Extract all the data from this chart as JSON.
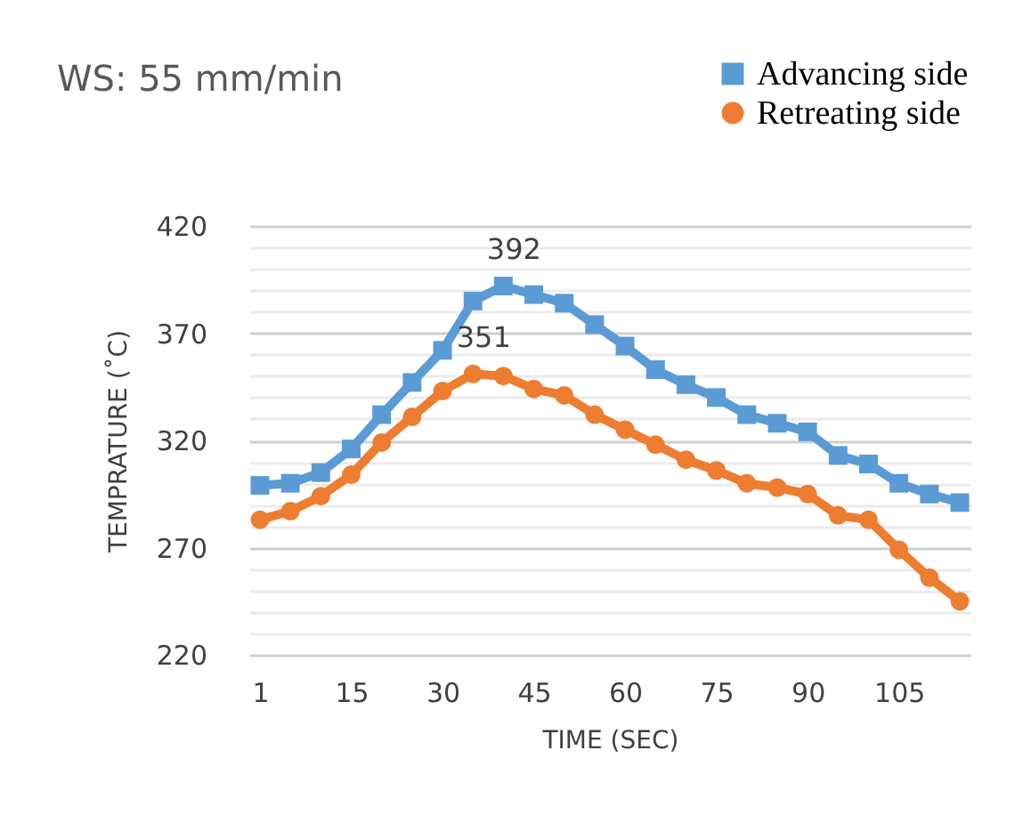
{
  "chart_data": {
    "type": "line",
    "title": "WS: 55 mm/min",
    "xlabel": "TIME (SEC)",
    "ylabel": "TEMPRATURE (˚C)",
    "categories": [
      "1",
      null,
      null,
      "15",
      null,
      null,
      "30",
      null,
      null,
      "45",
      null,
      null,
      "60",
      null,
      null,
      "75",
      null,
      null,
      "90",
      null,
      null,
      "105",
      null,
      null
    ],
    "series": [
      {
        "name": "Advancing side",
        "color": "#5b9bd5",
        "marker": "square",
        "values": [
          299,
          300,
          305,
          316,
          332,
          347,
          362,
          385,
          392,
          388,
          384,
          374,
          364,
          353,
          346,
          340,
          332,
          328,
          324,
          313,
          309,
          300,
          295,
          291
        ],
        "value_labels": [
          null,
          null,
          null,
          null,
          null,
          null,
          null,
          null,
          "392",
          null,
          null,
          null,
          null,
          null,
          null,
          null,
          null,
          null,
          null,
          null,
          null,
          null,
          null,
          null
        ]
      },
      {
        "name": "Retreating side",
        "color": "#ed7d31",
        "marker": "circle",
        "values": [
          283,
          287,
          294,
          304,
          319,
          331,
          343,
          351,
          350,
          344,
          341,
          332,
          325,
          318,
          311,
          306,
          300,
          298,
          295,
          285,
          283,
          269,
          256,
          245
        ],
        "value_labels": [
          null,
          null,
          null,
          null,
          null,
          null,
          null,
          "351",
          null,
          null,
          null,
          null,
          null,
          null,
          null,
          null,
          null,
          null,
          null,
          null,
          null,
          null,
          null,
          null
        ]
      }
    ],
    "ylim": [
      220,
      420
    ],
    "yticks": [
      220,
      {
        "value": 230,
        "label": null
      },
      {
        "value": 240,
        "label": null
      },
      {
        "value": 250,
        "label": null
      },
      {
        "value": 260,
        "label": null
      },
      270,
      {
        "value": 280,
        "label": null
      },
      {
        "value": 290,
        "label": null
      },
      {
        "value": 300,
        "label": null
      },
      {
        "value": 310,
        "label": null
      },
      320,
      {
        "value": 330,
        "label": null
      },
      {
        "value": 340,
        "label": null
      },
      {
        "value": 350,
        "label": null
      },
      {
        "value": 360,
        "label": null
      },
      370,
      {
        "value": 380,
        "label": null
      },
      {
        "value": 390,
        "label": null
      },
      {
        "value": 400,
        "label": null
      },
      {
        "value": 410,
        "label": null
      },
      420
    ],
    "grid": "y",
    "legend": "top right",
    "line_style": "solid"
  }
}
